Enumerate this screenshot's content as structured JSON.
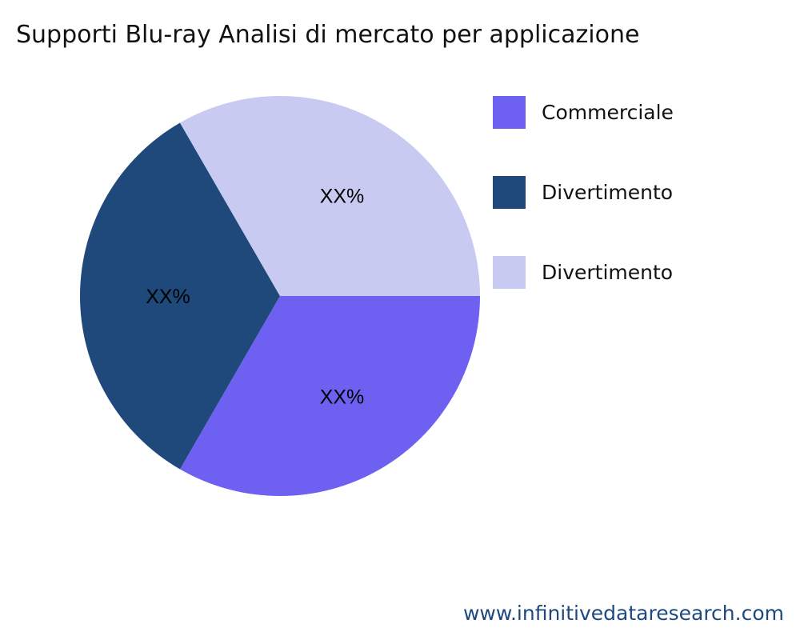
{
  "chart_data": {
    "type": "pie",
    "title": "Supporti Blu-ray Analisi di mercato per applicazione",
    "slices": [
      {
        "name": "Commerciale",
        "value": 33.33,
        "label": "XX%",
        "color": "#6E61F2"
      },
      {
        "name": "Divertimento",
        "value": 33.33,
        "label": "XX%",
        "color": "#1F497A"
      },
      {
        "name": "Divertimento",
        "value": 33.33,
        "label": "XX%",
        "color": "#C9CAF2"
      }
    ],
    "legend_position": "right"
  },
  "watermark": "www.infinitivedataresearch.com"
}
